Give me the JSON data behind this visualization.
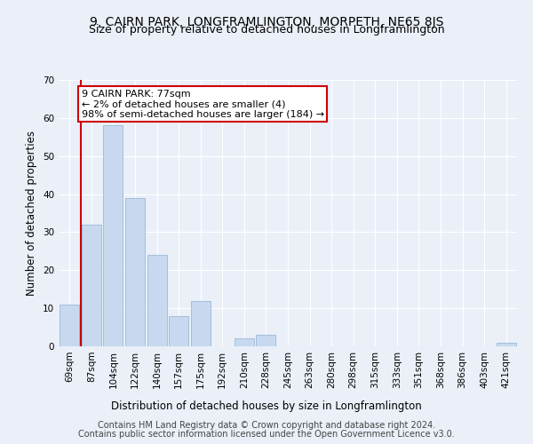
{
  "title": "9, CAIRN PARK, LONGFRAMLINGTON, MORPETH, NE65 8JS",
  "subtitle": "Size of property relative to detached houses in Longframlington",
  "xlabel": "Distribution of detached houses by size in Longframlington",
  "ylabel": "Number of detached properties",
  "categories": [
    "69sqm",
    "87sqm",
    "104sqm",
    "122sqm",
    "140sqm",
    "157sqm",
    "175sqm",
    "192sqm",
    "210sqm",
    "228sqm",
    "245sqm",
    "263sqm",
    "280sqm",
    "298sqm",
    "315sqm",
    "333sqm",
    "351sqm",
    "368sqm",
    "386sqm",
    "403sqm",
    "421sqm"
  ],
  "values": [
    11,
    32,
    58,
    39,
    24,
    8,
    12,
    0,
    2,
    3,
    0,
    0,
    0,
    0,
    0,
    0,
    0,
    0,
    0,
    0,
    1
  ],
  "bar_color": "#c8d9ef",
  "bar_edge_color": "#9ab8d8",
  "highlight_color": "#cc0000",
  "annotation_text": "9 CAIRN PARK: 77sqm\n← 2% of detached houses are smaller (4)\n98% of semi-detached houses are larger (184) →",
  "annotation_box_color": "#ffffff",
  "annotation_box_edge_color": "#cc0000",
  "ylim": [
    0,
    70
  ],
  "yticks": [
    0,
    10,
    20,
    30,
    40,
    50,
    60,
    70
  ],
  "footer_line1": "Contains HM Land Registry data © Crown copyright and database right 2024.",
  "footer_line2": "Contains public sector information licensed under the Open Government Licence v3.0.",
  "bg_color": "#eaeff8",
  "plot_bg_color": "#eaeff8",
  "grid_color": "#ffffff",
  "title_fontsize": 10,
  "subtitle_fontsize": 9,
  "xlabel_fontsize": 8.5,
  "ylabel_fontsize": 8.5,
  "tick_fontsize": 7.5,
  "annotation_fontsize": 8,
  "footer_fontsize": 7
}
